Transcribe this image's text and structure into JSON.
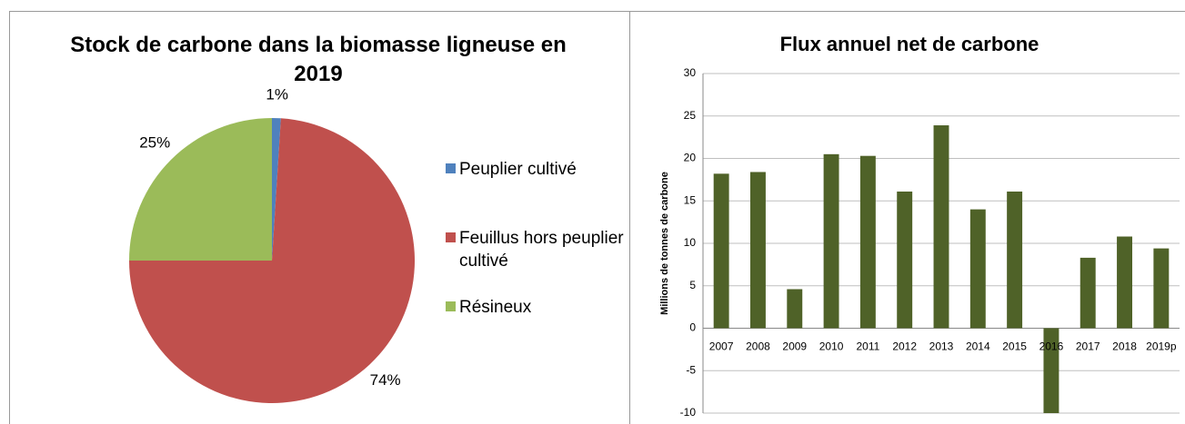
{
  "chart_data": [
    {
      "type": "pie",
      "title": "Stock de carbone dans la biomasse ligneuse en 2019",
      "categories": [
        "Peuplier cultivé",
        "Feuillus hors peuplier cultivé",
        "Résineux"
      ],
      "values": [
        1,
        74,
        25
      ],
      "value_labels": [
        "1%",
        "74%",
        "25%"
      ],
      "colors": [
        "#4f81bd",
        "#c0504d",
        "#9bbb59"
      ],
      "legend": "right"
    },
    {
      "type": "bar",
      "title": "Flux annuel net de carbone",
      "ylabel": "Millions de tonnes de carbone",
      "categories": [
        "2007",
        "2008",
        "2009",
        "2010",
        "2011",
        "2012",
        "2013",
        "2014",
        "2015",
        "2016",
        "2017",
        "2018",
        "2019p"
      ],
      "values": [
        18.2,
        18.4,
        4.6,
        20.5,
        20.3,
        16.1,
        23.9,
        14.0,
        16.1,
        -10,
        8.3,
        10.8,
        9.4
      ],
      "color": "#4f6228",
      "ylim": [
        -10,
        30
      ],
      "yticks": [
        -10,
        -5,
        0,
        5,
        10,
        15,
        20,
        25,
        30
      ],
      "grid": true
    }
  ]
}
